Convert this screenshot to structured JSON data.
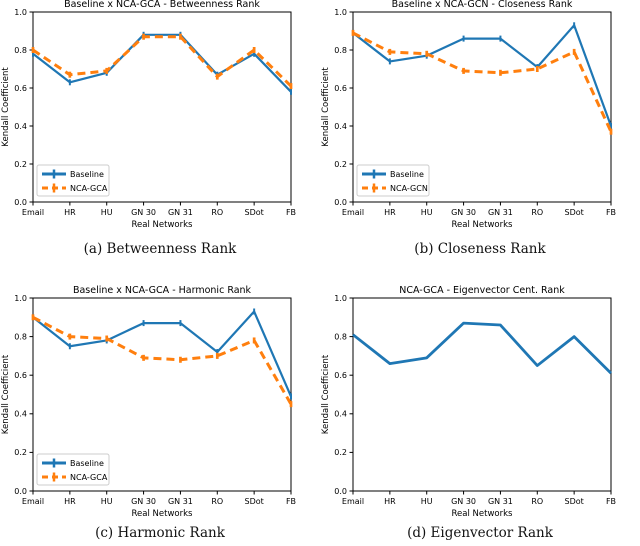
{
  "page": {
    "background": "#ffffff"
  },
  "colors": {
    "baseline_blue": "#1f77b4",
    "nca_orange": "#ff7f0e",
    "axis": "#000000",
    "legend_border": "#cccccc",
    "legend_bg": "#ffffff"
  },
  "chart_data": [
    {
      "id": "betweenness",
      "type": "line",
      "title": "Baseline x NCA-GCA - Betweenness Rank",
      "xlabel": "Real Networks",
      "ylabel": "Kendall Coefficient",
      "categories": [
        "Email",
        "HR",
        "HU",
        "GN 30",
        "GN 31",
        "RO",
        "SDot",
        "FB"
      ],
      "ylim": [
        0.0,
        1.0
      ],
      "yticks": [
        0.0,
        0.2,
        0.4,
        0.6,
        0.8,
        1.0
      ],
      "grid": false,
      "legend": true,
      "legend_position": "lower-left",
      "error_caps": true,
      "series": [
        {
          "name": "Baseline",
          "color": "#1f77b4",
          "style": "solid",
          "values": [
            0.78,
            0.63,
            0.68,
            0.88,
            0.88,
            0.67,
            0.78,
            0.58
          ]
        },
        {
          "name": "NCA-GCA",
          "color": "#ff7f0e",
          "style": "dashed",
          "values": [
            0.8,
            0.67,
            0.69,
            0.87,
            0.87,
            0.66,
            0.8,
            0.61
          ]
        }
      ],
      "caption": "(a) Betweenness Rank"
    },
    {
      "id": "closeness",
      "type": "line",
      "title": "Baseline x NCA-GCN - Closeness Rank",
      "xlabel": "Real Networks",
      "ylabel": "Kendall Coefficient",
      "categories": [
        "Email",
        "HR",
        "HU",
        "GN 30",
        "GN 31",
        "RO",
        "SDot",
        "FB"
      ],
      "ylim": [
        0.0,
        1.0
      ],
      "yticks": [
        0.0,
        0.2,
        0.4,
        0.6,
        0.8,
        1.0
      ],
      "grid": false,
      "legend": true,
      "legend_position": "lower-left",
      "error_caps": true,
      "series": [
        {
          "name": "Baseline",
          "color": "#1f77b4",
          "style": "solid",
          "values": [
            0.89,
            0.74,
            0.77,
            0.86,
            0.86,
            0.71,
            0.93,
            0.4
          ]
        },
        {
          "name": "NCA-GCN",
          "color": "#ff7f0e",
          "style": "dashed",
          "values": [
            0.89,
            0.79,
            0.78,
            0.69,
            0.68,
            0.7,
            0.79,
            0.37
          ]
        }
      ],
      "caption": "(b) Closeness Rank"
    },
    {
      "id": "harmonic",
      "type": "line",
      "title": "Baseline x NCA-GCA - Harmonic Rank",
      "xlabel": "Real Networks",
      "ylabel": "Kendall Coefficient",
      "categories": [
        "Email",
        "HR",
        "HU",
        "GN 30",
        "GN 31",
        "RO",
        "SDot",
        "FB"
      ],
      "ylim": [
        0.0,
        1.0
      ],
      "yticks": [
        0.0,
        0.2,
        0.4,
        0.6,
        0.8,
        1.0
      ],
      "grid": false,
      "legend": true,
      "legend_position": "lower-left",
      "error_caps": true,
      "series": [
        {
          "name": "Baseline",
          "color": "#1f77b4",
          "style": "solid",
          "values": [
            0.9,
            0.75,
            0.78,
            0.87,
            0.87,
            0.72,
            0.93,
            0.49
          ]
        },
        {
          "name": "NCA-GCA",
          "color": "#ff7f0e",
          "style": "dashed",
          "values": [
            0.9,
            0.8,
            0.79,
            0.69,
            0.68,
            0.7,
            0.78,
            0.45
          ]
        }
      ],
      "caption": "(c) Harmonic Rank"
    },
    {
      "id": "eigenvector",
      "type": "line",
      "title": "NCA-GCA - Eigenvector Cent. Rank",
      "xlabel": "Real Networks",
      "ylabel": "Kendall Coefficient",
      "categories": [
        "Email",
        "HR",
        "HU",
        "GN 30",
        "GN 31",
        "RO",
        "SDot",
        "FB"
      ],
      "ylim": [
        0.0,
        1.0
      ],
      "yticks": [
        0.0,
        0.2,
        0.4,
        0.6,
        0.8,
        1.0
      ],
      "grid": false,
      "legend": false,
      "error_caps": false,
      "series": [
        {
          "name": "NCA-GCA",
          "color": "#1f77b4",
          "style": "solid",
          "values": [
            0.81,
            0.66,
            0.69,
            0.87,
            0.86,
            0.65,
            0.8,
            0.61
          ]
        }
      ],
      "caption": "(d) Eigenvector Rank"
    }
  ]
}
